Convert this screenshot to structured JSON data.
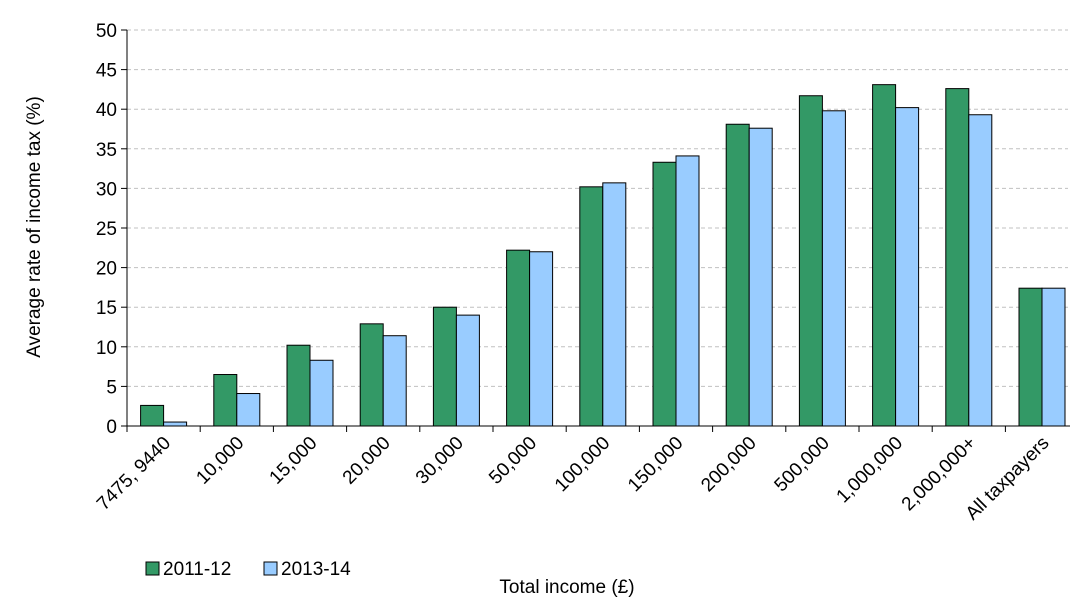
{
  "chart_data": {
    "type": "bar",
    "title": "",
    "xlabel": "Total income (£)",
    "ylabel": "Average rate of income tax (%)",
    "ylim": [
      0,
      50
    ],
    "yticks": [
      "0",
      "5",
      "10",
      "15",
      "20",
      "25",
      "30",
      "35",
      "40",
      "45",
      "50"
    ],
    "ytick_values": [
      0,
      5,
      10,
      15,
      20,
      25,
      30,
      35,
      40,
      45,
      50
    ],
    "grid": "horizontal dashed",
    "legend_position": "bottom-left",
    "categories": [
      "7475, 9440",
      "10,000",
      "15,000",
      "20,000",
      "30,000",
      "50,000",
      "100,000",
      "150,000",
      "200,000",
      "500,000",
      "1,000,000",
      "2,000,000+",
      "All taxpayers"
    ],
    "series": [
      {
        "name": "2011-12",
        "color": "#339966",
        "values": [
          2.6,
          6.5,
          10.2,
          12.9,
          15.0,
          22.2,
          30.2,
          33.3,
          38.1,
          41.7,
          43.1,
          42.6,
          17.4
        ]
      },
      {
        "name": "2013-14",
        "color": "#99ccff",
        "values": [
          0.5,
          4.1,
          8.3,
          11.4,
          14.0,
          22.0,
          30.7,
          34.1,
          37.6,
          39.8,
          40.2,
          39.3,
          17.4
        ]
      }
    ]
  }
}
